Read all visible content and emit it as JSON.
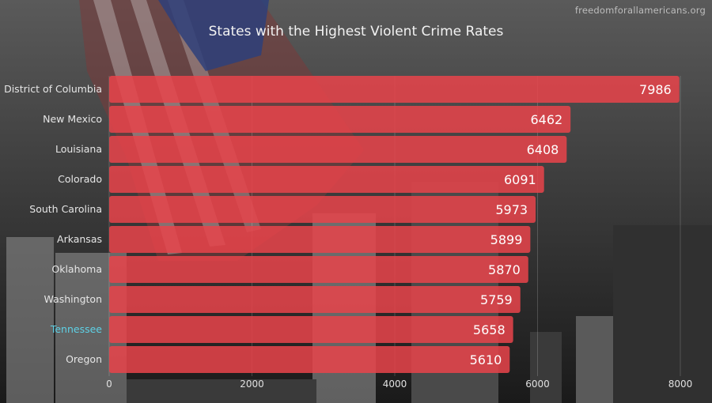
{
  "watermark": "freedomforallamericans.org",
  "colors": {
    "bar": "#e8444b",
    "label": "#e6e6e6",
    "highlight_label": "#5ed1e6",
    "value_text": "#ffffff"
  },
  "chart_data": {
    "type": "bar",
    "orientation": "horizontal",
    "title": "States with the Highest Violent Crime Rates",
    "xlabel": "",
    "ylabel": "",
    "categories": [
      "District of Columbia",
      "New Mexico",
      "Louisiana",
      "Colorado",
      "South Carolina",
      "Arkansas",
      "Oklahoma",
      "Washington",
      "Tennessee",
      "Oregon"
    ],
    "values": [
      7986,
      6462,
      6408,
      6091,
      5973,
      5899,
      5870,
      5759,
      5658,
      5610
    ],
    "highlighted_category": "Tennessee",
    "xlim": [
      0,
      8000
    ],
    "xticks": [
      0,
      2000,
      4000,
      6000,
      8000
    ],
    "grid": true,
    "data_labels": true
  }
}
